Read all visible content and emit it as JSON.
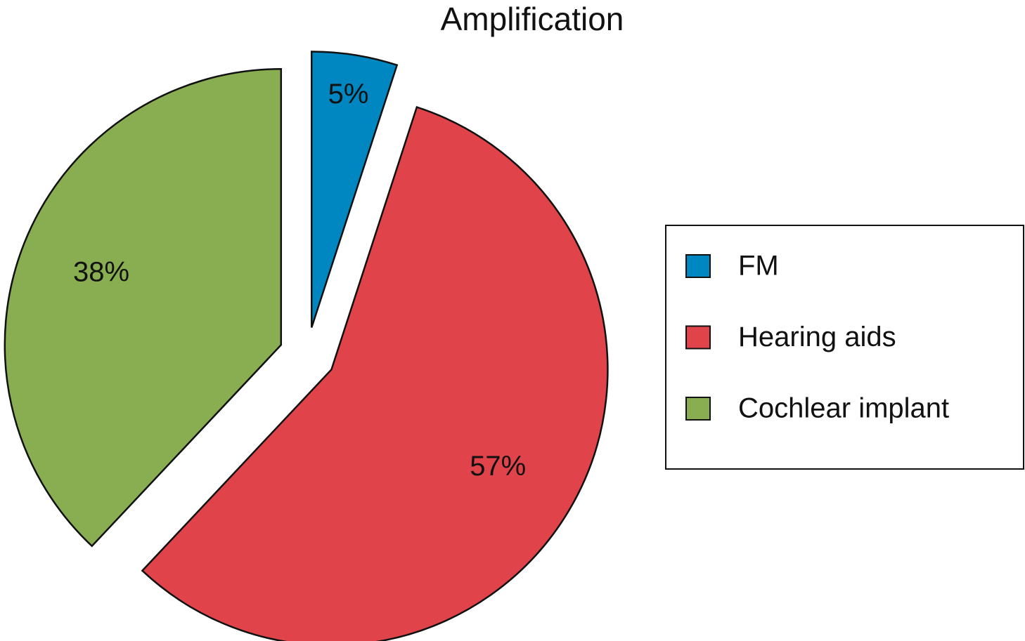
{
  "chart_data": {
    "type": "pie",
    "title": "Amplification",
    "categories": [
      "FM",
      "Hearing aids",
      "Cochlear implant"
    ],
    "values": [
      5,
      57,
      38
    ],
    "value_labels": [
      "5%",
      "57%",
      "38%"
    ],
    "colors": [
      "#0087c1",
      "#e0444a",
      "#89ae51"
    ],
    "legend": "right"
  }
}
